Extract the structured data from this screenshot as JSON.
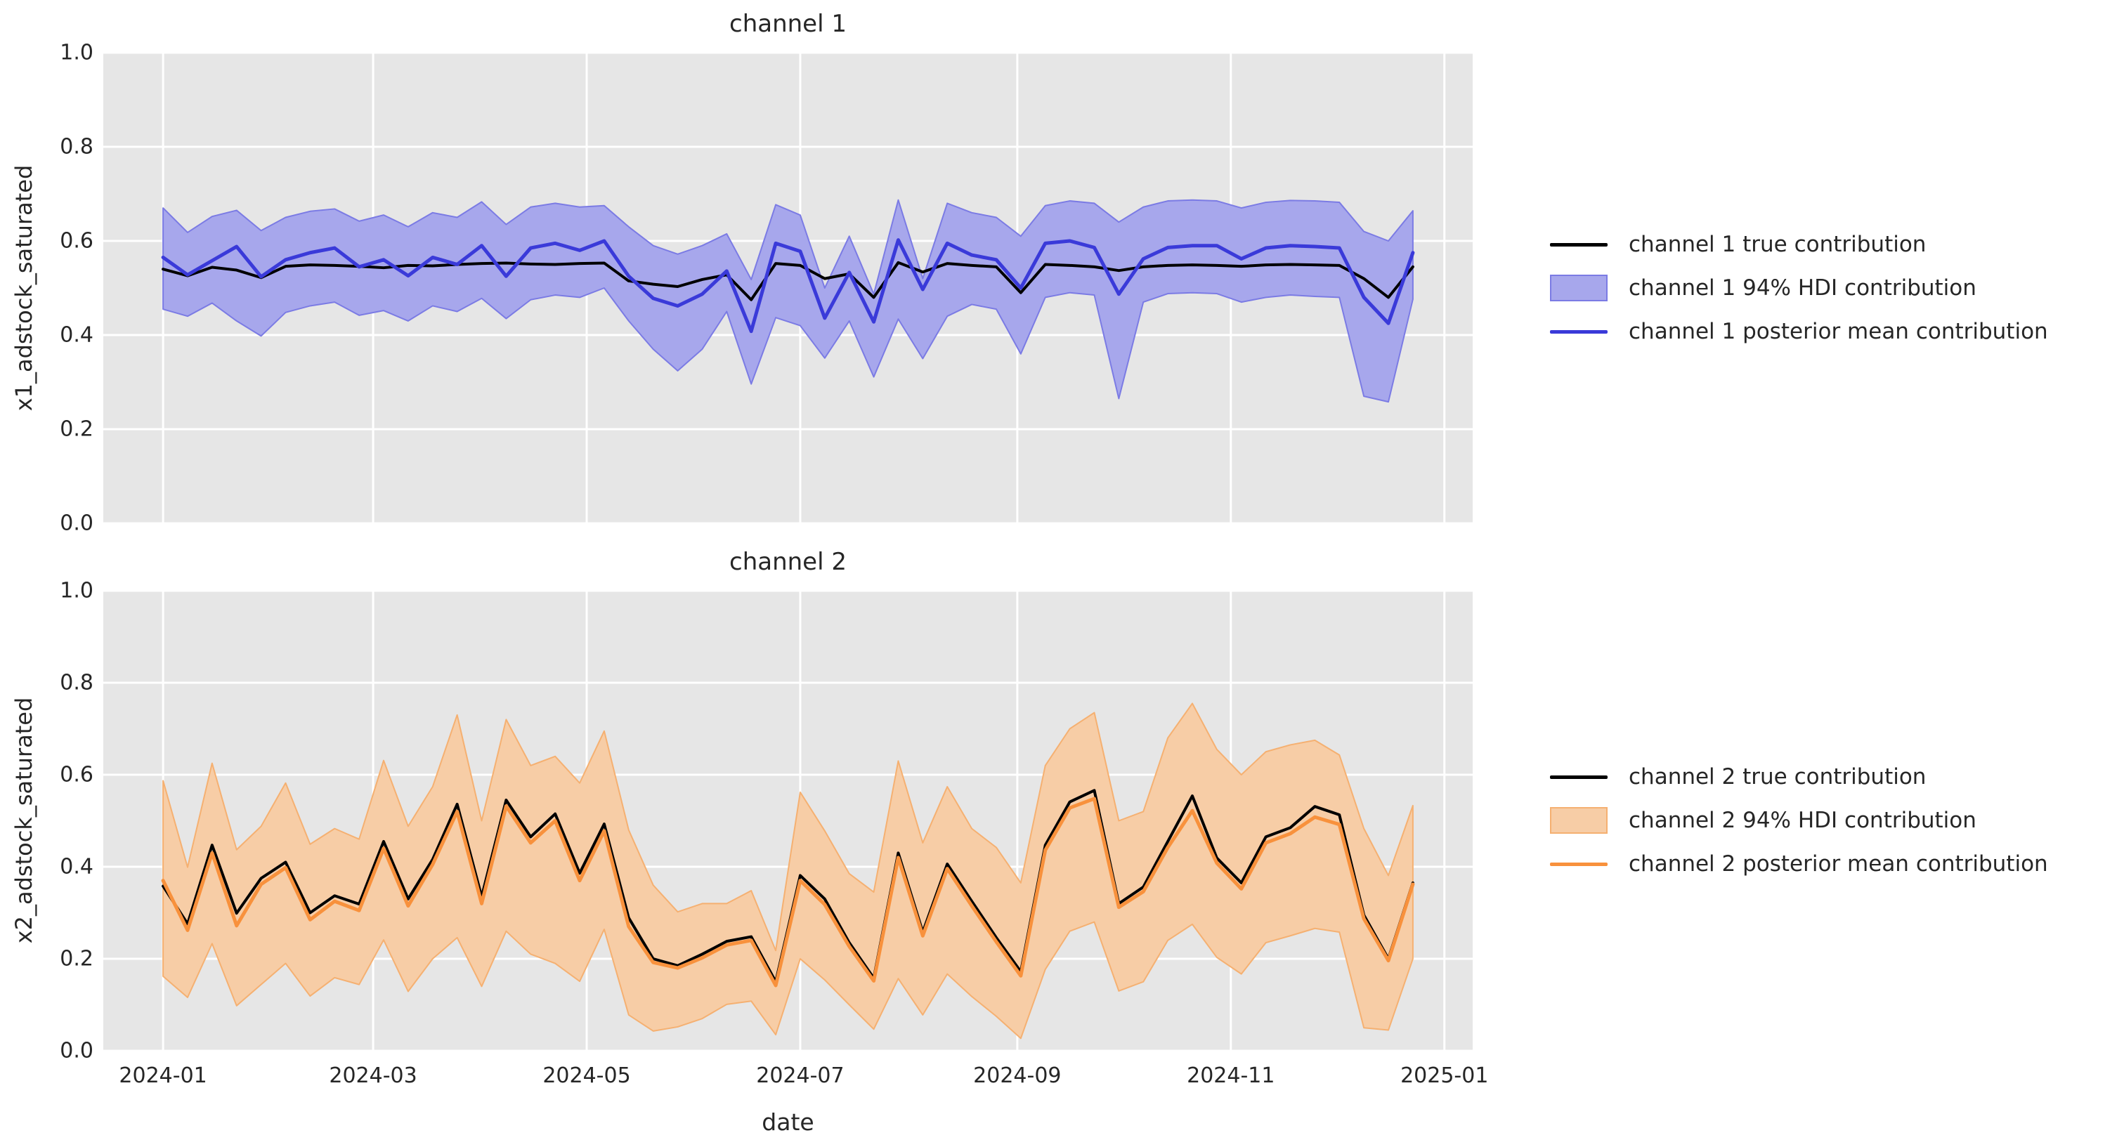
{
  "figure": {
    "background": "#ffffff",
    "axes_background": "#e6e6e6",
    "grid_color": "#ffffff",
    "text_color": "#262626"
  },
  "xlabel": "date",
  "y_tick_labels": [
    "0.0",
    "0.2",
    "0.4",
    "0.6",
    "0.8",
    "1.0"
  ],
  "x_tick_labels": [
    "2024-01",
    "2024-03",
    "2024-05",
    "2024-07",
    "2024-09",
    "2024-11",
    "2025-01"
  ],
  "chart_data": [
    {
      "type": "line",
      "title": "channel 1",
      "ylabel": "x1_adstock_saturated",
      "xlabel": "date",
      "ylim": [
        0,
        1
      ],
      "grid": true,
      "legend_position": "right-outside",
      "x_axis": {
        "unit": "weeks since 2024-01-01",
        "n_points": 52,
        "xlim_weeks": [
          -2.44,
          53.44
        ],
        "ticks": [
          {
            "week": 0,
            "label": "2024-01"
          },
          {
            "week": 8.571,
            "label": "2024-03"
          },
          {
            "week": 17.286,
            "label": "2024-05"
          },
          {
            "week": 26.0,
            "label": "2024-07"
          },
          {
            "week": 34.857,
            "label": "2024-09"
          },
          {
            "week": 43.571,
            "label": "2024-11"
          },
          {
            "week": 52.286,
            "label": "2025-01"
          }
        ]
      },
      "series": [
        {
          "name": "channel 1 true contribution",
          "type": "line",
          "color": "#000000",
          "width": 4,
          "values": [
            0.54,
            0.526,
            0.544,
            0.538,
            0.522,
            0.546,
            0.549,
            0.548,
            0.546,
            0.543,
            0.548,
            0.547,
            0.55,
            0.552,
            0.553,
            0.551,
            0.55,
            0.552,
            0.553,
            0.515,
            0.508,
            0.503,
            0.518,
            0.528,
            0.475,
            0.552,
            0.548,
            0.52,
            0.53,
            0.48,
            0.554,
            0.534,
            0.552,
            0.548,
            0.545,
            0.49,
            0.55,
            0.548,
            0.545,
            0.537,
            0.545,
            0.548,
            0.549,
            0.548,
            0.546,
            0.549,
            0.55,
            0.549,
            0.548,
            0.52,
            0.48,
            0.545
          ]
        },
        {
          "name": "channel 1 94% HDI contribution",
          "type": "band",
          "fill": "#a7a7ec",
          "edge": "#7b7be4",
          "lo": [
            0.455,
            0.44,
            0.468,
            0.43,
            0.398,
            0.448,
            0.462,
            0.47,
            0.442,
            0.452,
            0.43,
            0.462,
            0.45,
            0.478,
            0.435,
            0.475,
            0.485,
            0.48,
            0.5,
            0.43,
            0.37,
            0.324,
            0.37,
            0.45,
            0.296,
            0.437,
            0.42,
            0.351,
            0.43,
            0.311,
            0.434,
            0.35,
            0.44,
            0.465,
            0.455,
            0.36,
            0.48,
            0.49,
            0.485,
            0.265,
            0.47,
            0.488,
            0.49,
            0.488,
            0.47,
            0.48,
            0.485,
            0.482,
            0.48,
            0.27,
            0.258,
            0.476
          ],
          "hi": [
            0.67,
            0.618,
            0.652,
            0.665,
            0.622,
            0.65,
            0.663,
            0.668,
            0.642,
            0.655,
            0.63,
            0.66,
            0.65,
            0.683,
            0.635,
            0.672,
            0.68,
            0.672,
            0.675,
            0.63,
            0.59,
            0.572,
            0.59,
            0.615,
            0.518,
            0.677,
            0.655,
            0.5,
            0.61,
            0.487,
            0.687,
            0.52,
            0.68,
            0.66,
            0.65,
            0.61,
            0.675,
            0.685,
            0.68,
            0.64,
            0.672,
            0.685,
            0.687,
            0.685,
            0.67,
            0.682,
            0.686,
            0.685,
            0.682,
            0.62,
            0.6,
            0.664
          ]
        },
        {
          "name": "channel 1 posterior mean contribution",
          "type": "line",
          "color": "#3a3ad9",
          "width": 5,
          "values": [
            0.565,
            0.528,
            0.558,
            0.588,
            0.524,
            0.56,
            0.575,
            0.585,
            0.545,
            0.56,
            0.526,
            0.565,
            0.55,
            0.59,
            0.525,
            0.585,
            0.595,
            0.58,
            0.6,
            0.525,
            0.478,
            0.462,
            0.487,
            0.536,
            0.408,
            0.595,
            0.578,
            0.436,
            0.533,
            0.428,
            0.602,
            0.497,
            0.595,
            0.57,
            0.56,
            0.5,
            0.595,
            0.6,
            0.586,
            0.487,
            0.562,
            0.586,
            0.59,
            0.59,
            0.562,
            0.585,
            0.59,
            0.588,
            0.585,
            0.48,
            0.425,
            0.575
          ]
        }
      ],
      "legend": [
        {
          "kind": "line",
          "color": "#000000",
          "label": "channel 1 true contribution"
        },
        {
          "kind": "patch",
          "fill": "#a7a7ec",
          "edge": "#7b7be4",
          "label": "channel 1 94% HDI contribution"
        },
        {
          "kind": "line",
          "color": "#3a3ad9",
          "label": "channel 1 posterior mean contribution"
        }
      ]
    },
    {
      "type": "line",
      "title": "channel 2",
      "ylabel": "x2_adstock_saturated",
      "xlabel": "date",
      "ylim": [
        0,
        1
      ],
      "grid": true,
      "legend_position": "right-outside",
      "x_axis": {
        "unit": "weeks since 2024-01-01",
        "n_points": 52,
        "xlim_weeks": [
          -2.44,
          53.44
        ],
        "ticks": [
          {
            "week": 0,
            "label": "2024-01"
          },
          {
            "week": 8.571,
            "label": "2024-03"
          },
          {
            "week": 17.286,
            "label": "2024-05"
          },
          {
            "week": 26.0,
            "label": "2024-07"
          },
          {
            "week": 34.857,
            "label": "2024-09"
          },
          {
            "week": 43.571,
            "label": "2024-11"
          },
          {
            "week": 52.286,
            "label": "2025-01"
          }
        ]
      },
      "series": [
        {
          "name": "channel 2 true contribution",
          "type": "line",
          "color": "#000000",
          "width": 4,
          "values": [
            0.358,
            0.276,
            0.447,
            0.299,
            0.375,
            0.41,
            0.3,
            0.337,
            0.319,
            0.455,
            0.33,
            0.416,
            0.536,
            0.335,
            0.545,
            0.465,
            0.515,
            0.386,
            0.493,
            0.289,
            0.2,
            0.185,
            0.21,
            0.238,
            0.248,
            0.15,
            0.381,
            0.33,
            0.235,
            0.158,
            0.43,
            0.258,
            0.406,
            0.325,
            0.246,
            0.172,
            0.447,
            0.541,
            0.566,
            0.32,
            0.356,
            0.455,
            0.554,
            0.419,
            0.365,
            0.465,
            0.485,
            0.531,
            0.513,
            0.295,
            0.2,
            0.365
          ]
        },
        {
          "name": "channel 2 94% HDI contribution",
          "type": "band",
          "fill": "#f7cda6",
          "edge": "#f5b071",
          "lo": [
            0.162,
            0.116,
            0.233,
            0.098,
            0.144,
            0.19,
            0.119,
            0.159,
            0.144,
            0.241,
            0.129,
            0.2,
            0.246,
            0.14,
            0.26,
            0.21,
            0.19,
            0.151,
            0.264,
            0.078,
            0.043,
            0.052,
            0.07,
            0.101,
            0.108,
            0.035,
            0.2,
            0.154,
            0.1,
            0.047,
            0.157,
            0.078,
            0.167,
            0.118,
            0.075,
            0.027,
            0.177,
            0.26,
            0.28,
            0.13,
            0.15,
            0.24,
            0.275,
            0.203,
            0.167,
            0.235,
            0.25,
            0.266,
            0.258,
            0.05,
            0.045,
            0.2
          ],
          "hi": [
            0.587,
            0.399,
            0.625,
            0.437,
            0.488,
            0.582,
            0.449,
            0.483,
            0.46,
            0.631,
            0.488,
            0.574,
            0.73,
            0.5,
            0.72,
            0.62,
            0.64,
            0.582,
            0.695,
            0.48,
            0.36,
            0.302,
            0.32,
            0.32,
            0.348,
            0.218,
            0.562,
            0.478,
            0.385,
            0.345,
            0.63,
            0.452,
            0.574,
            0.483,
            0.442,
            0.365,
            0.62,
            0.7,
            0.735,
            0.5,
            0.52,
            0.68,
            0.755,
            0.655,
            0.6,
            0.65,
            0.665,
            0.675,
            0.643,
            0.483,
            0.381,
            0.533
          ]
        },
        {
          "name": "channel 2 posterior mean contribution",
          "type": "line",
          "color": "#f8913c",
          "width": 5,
          "values": [
            0.37,
            0.262,
            0.43,
            0.272,
            0.362,
            0.398,
            0.285,
            0.325,
            0.305,
            0.44,
            0.315,
            0.405,
            0.52,
            0.32,
            0.532,
            0.452,
            0.5,
            0.37,
            0.478,
            0.27,
            0.192,
            0.18,
            0.202,
            0.23,
            0.24,
            0.142,
            0.37,
            0.318,
            0.227,
            0.152,
            0.42,
            0.25,
            0.396,
            0.315,
            0.237,
            0.163,
            0.436,
            0.528,
            0.548,
            0.312,
            0.346,
            0.442,
            0.522,
            0.408,
            0.352,
            0.452,
            0.472,
            0.508,
            0.492,
            0.287,
            0.196,
            0.362
          ]
        }
      ],
      "legend": [
        {
          "kind": "line",
          "color": "#000000",
          "label": "channel 2 true contribution"
        },
        {
          "kind": "patch",
          "fill": "#f7cda6",
          "edge": "#f5b071",
          "label": "channel 2 94% HDI contribution"
        },
        {
          "kind": "line",
          "color": "#f8913c",
          "label": "channel 2 posterior mean contribution"
        }
      ]
    }
  ]
}
